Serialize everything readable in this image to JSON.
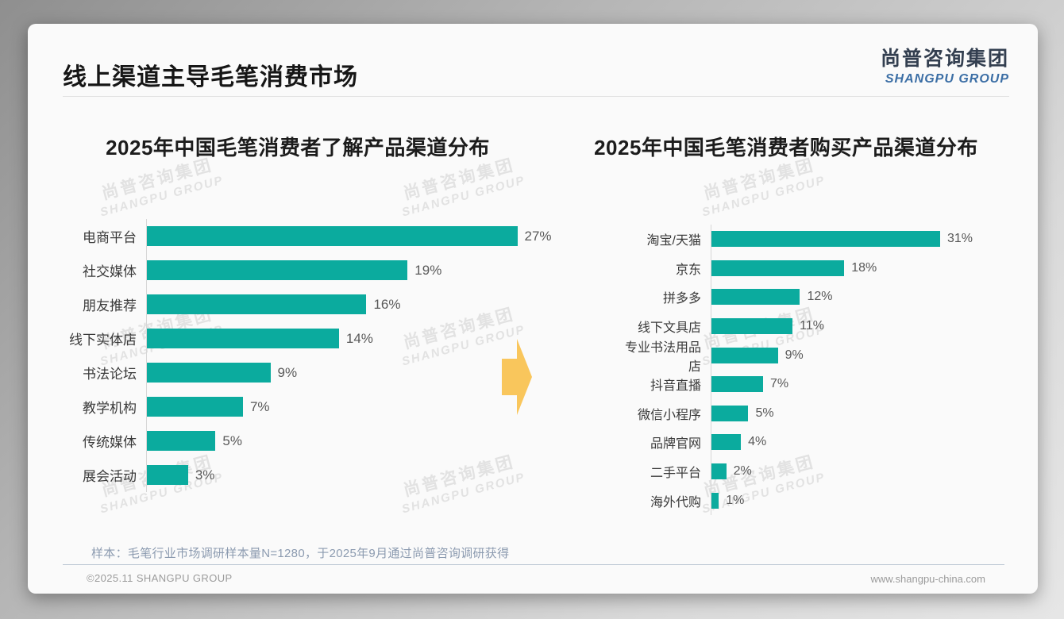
{
  "slide": {
    "title": "线上渠道主导毛笔消费市场",
    "logo": {
      "cn": "尚普咨询集团",
      "en": "SHANGPU GROUP"
    },
    "watermark": {
      "line1": "尚普咨询集团",
      "line2": "SHANGPU GROUP"
    },
    "footnote": "样本：毛笔行业市场调研样本量N=1280，于2025年9月通过尚普咨询调研获得",
    "footer": {
      "left": "©2025.11 SHANGPU GROUP",
      "right": "www.shangpu-china.com"
    }
  },
  "colors": {
    "bar": "#0bab9e",
    "arrow": "#f9c65c",
    "logo_cn": "#333f50",
    "logo_en": "#3b6ea5"
  },
  "chart_data": [
    {
      "type": "bar",
      "orientation": "horizontal",
      "title": "2025年中国毛笔消费者了解产品渠道分布",
      "categories": [
        "电商平台",
        "社交媒体",
        "朋友推荐",
        "线下实体店",
        "书法论坛",
        "教学机构",
        "传统媒体",
        "展会活动"
      ],
      "values": [
        27,
        19,
        16,
        14,
        9,
        7,
        5,
        3
      ],
      "unit": "%",
      "value_labels": [
        "27%",
        "19%",
        "16%",
        "14%",
        "9%",
        "7%",
        "5%",
        "3%"
      ],
      "axis_max": 30.5,
      "grid": false,
      "legend": false
    },
    {
      "type": "bar",
      "orientation": "horizontal",
      "title": "2025年中国毛笔消费者购买产品渠道分布",
      "categories": [
        "淘宝/天猫",
        "京东",
        "拼多多",
        "线下文具店",
        "专业书法用品店",
        "抖音直播",
        "微信小程序",
        "品牌官网",
        "二手平台",
        "海外代购"
      ],
      "values": [
        31,
        18,
        12,
        11,
        9,
        7,
        5,
        4,
        2,
        1
      ],
      "unit": "%",
      "value_labels": [
        "31%",
        "18%",
        "12%",
        "11%",
        "9%",
        "7%",
        "5%",
        "4%",
        "2%",
        "1%"
      ],
      "axis_max": 38,
      "grid": false,
      "legend": false
    }
  ]
}
